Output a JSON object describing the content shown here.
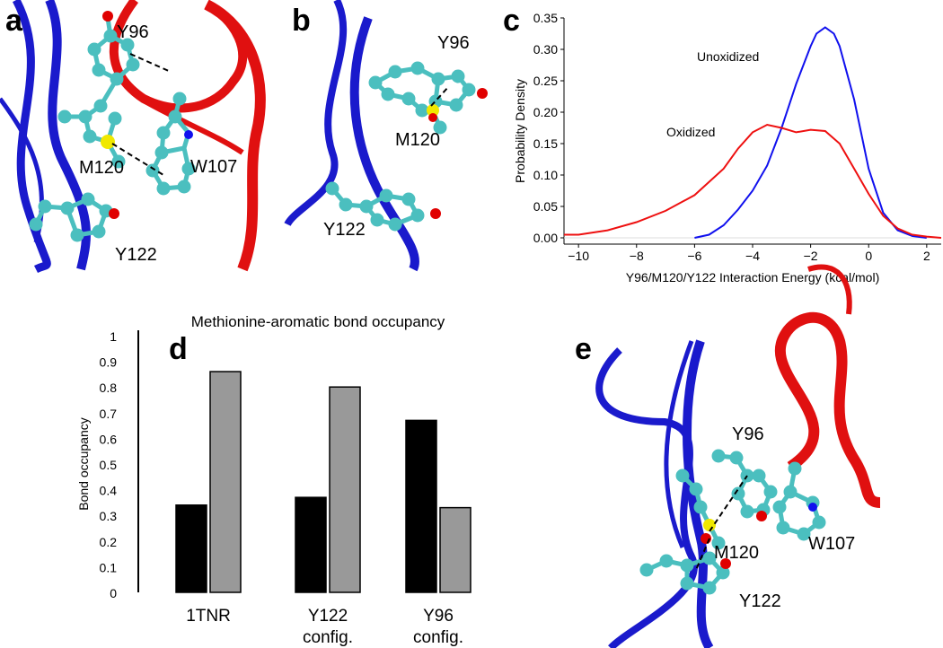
{
  "panels": {
    "a": {
      "letter": "a",
      "labels": [
        "Y96",
        "M120",
        "W107",
        "Y122"
      ]
    },
    "b": {
      "letter": "b",
      "labels": [
        "Y96",
        "M120",
        "Y122"
      ]
    },
    "c": {
      "letter": "c"
    },
    "d": {
      "letter": "d"
    },
    "e": {
      "letter": "e",
      "labels": [
        "Y96",
        "M120",
        "W107",
        "Y122"
      ]
    }
  },
  "colors": {
    "blue": "#1a1acc",
    "red": "#e01010",
    "teal": "#4bbfbf",
    "yellow": "#f0e800",
    "oxygen": "#e00000",
    "nitrogen": "#1010ee",
    "black_bar": "#000000",
    "gray_bar": "#999999"
  },
  "chart_data": [
    {
      "type": "line",
      "title": "",
      "xlabel": "Y96/M120/Y122 Interaction Energy (kcal/mol)",
      "ylabel": "Probability Density",
      "xlim": [
        -10.5,
        2.5
      ],
      "ylim": [
        -0.01,
        0.35
      ],
      "xticks": [
        "−10",
        "−8",
        "−6",
        "−4",
        "−2",
        "0",
        "2"
      ],
      "yticks": [
        "0.00",
        "0.05",
        "0.10",
        "0.15",
        "0.20",
        "0.25",
        "0.30",
        "0.35"
      ],
      "grid": false,
      "series": [
        {
          "name": "Unoxidized",
          "color": "#1010ee",
          "x": [
            -6.0,
            -5.5,
            -5.0,
            -4.5,
            -4.0,
            -3.5,
            -3.0,
            -2.5,
            -2.0,
            -1.8,
            -1.5,
            -1.2,
            -1.0,
            -0.5,
            0.0,
            0.5,
            1.0,
            1.5,
            2.0
          ],
          "y": [
            0.0,
            0.005,
            0.02,
            0.045,
            0.075,
            0.115,
            0.175,
            0.245,
            0.305,
            0.325,
            0.335,
            0.325,
            0.305,
            0.22,
            0.11,
            0.04,
            0.012,
            0.003,
            0.0
          ]
        },
        {
          "name": "Oxidized",
          "color": "#ee1010",
          "x": [
            -10.5,
            -10.0,
            -9.0,
            -8.0,
            -7.0,
            -6.0,
            -5.0,
            -4.5,
            -4.0,
            -3.5,
            -3.0,
            -2.5,
            -2.0,
            -1.5,
            -1.0,
            -0.5,
            0.0,
            0.5,
            1.0,
            1.5,
            2.0,
            2.5
          ],
          "y": [
            0.005,
            0.005,
            0.012,
            0.025,
            0.043,
            0.068,
            0.11,
            0.142,
            0.168,
            0.18,
            0.175,
            0.168,
            0.172,
            0.17,
            0.15,
            0.11,
            0.07,
            0.035,
            0.015,
            0.005,
            0.002,
            0.0
          ]
        }
      ]
    },
    {
      "type": "bar",
      "title": "Methionine-aromatic bond occupancy",
      "xlabel": "",
      "ylabel": "Bond occupancy",
      "ylim": [
        0,
        1
      ],
      "yticks": [
        "0",
        "0.1",
        "0.2",
        "0.3",
        "0.4",
        "0.5",
        "0.6",
        "0.7",
        "0.8",
        "0.9",
        "1"
      ],
      "categories": [
        [
          "1TNR"
        ],
        [
          "Y122",
          "config."
        ],
        [
          "Y96",
          "config."
        ]
      ],
      "series": [
        {
          "color": "#000000",
          "values": [
            0.34,
            0.37,
            0.67
          ]
        },
        {
          "color": "#999999",
          "values": [
            0.86,
            0.8,
            0.33
          ]
        }
      ]
    }
  ]
}
